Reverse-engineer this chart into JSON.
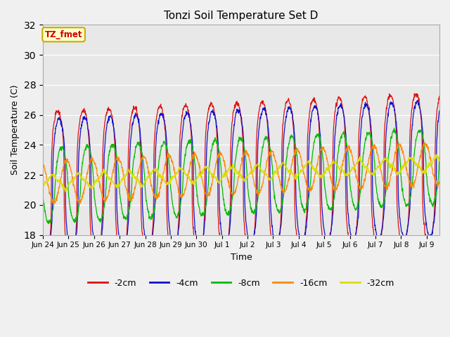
{
  "title": "Tonzi Soil Temperature Set D",
  "xlabel": "Time",
  "ylabel": "Soil Temperature (C)",
  "ylim": [
    18,
    32
  ],
  "yticks": [
    18,
    20,
    22,
    24,
    26,
    28,
    30,
    32
  ],
  "plot_bg_color": "#e8e8e8",
  "fig_bg_color": "#f0f0f0",
  "label_box_text": "TZ_fmet",
  "label_box_facecolor": "#ffffcc",
  "label_box_edgecolor": "#ccaa00",
  "series": [
    {
      "label": "-2cm",
      "color": "#dd1111",
      "amplitude": 5.0,
      "phase": 0.0,
      "base": 21.2,
      "sharpness": 3.0
    },
    {
      "label": "-4cm",
      "color": "#1111cc",
      "amplitude": 4.5,
      "phase": 0.05,
      "base": 21.2,
      "sharpness": 2.5
    },
    {
      "label": "-8cm",
      "color": "#00bb00",
      "amplitude": 2.5,
      "phase": 0.15,
      "base": 21.3,
      "sharpness": 1.5
    },
    {
      "label": "-16cm",
      "color": "#ff8800",
      "amplitude": 1.4,
      "phase": 0.35,
      "base": 21.5,
      "sharpness": 1.0
    },
    {
      "label": "-32cm",
      "color": "#dddd00",
      "amplitude": 0.5,
      "phase": 0.8,
      "base": 21.5,
      "sharpness": 0.5
    }
  ],
  "n_days": 15.5,
  "samples_per_day": 96,
  "base_trend": 0.08,
  "xtick_labels": [
    "Jun 24",
    "Jun 25",
    "Jun 26",
    "Jun 27",
    "Jun 28",
    "Jun 29",
    "Jun 30",
    "Jul 1",
    "Jul 2",
    "Jul 3",
    "Jul 4",
    "Jul 5",
    "Jul 6",
    "Jul 7",
    "Jul 8",
    "Jul 9"
  ],
  "legend_ncol": 5,
  "figsize": [
    6.4,
    4.8
  ],
  "dpi": 100
}
